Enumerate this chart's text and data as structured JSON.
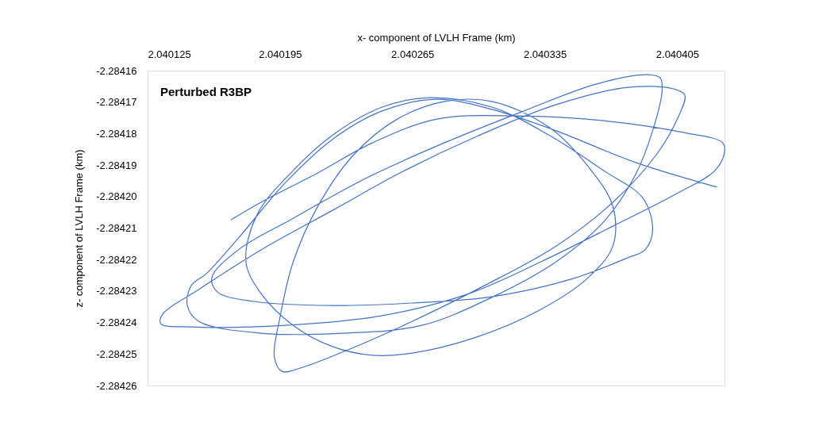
{
  "chart_data": {
    "type": "line",
    "xlabel": "x- component of LVLH Frame (km)",
    "ylabel": "z- component of LVLH Frame (km)",
    "xlim": [
      2.040125,
      2.04043
    ],
    "xticks": [
      2.040125,
      2.040195,
      2.040265,
      2.040335,
      2.040405
    ],
    "ylim": [
      -2.28426,
      -2.28416
    ],
    "yticks": [
      -2.28416,
      -2.28417,
      -2.28418,
      -2.28419,
      {
        "value": -2.2842,
        "label": "-2.28420"
      },
      -2.28421,
      -2.28422,
      -2.28423,
      -2.28424,
      -2.28425,
      -2.28426
    ],
    "grid": false,
    "legend": false,
    "marker": "none",
    "line_style": "solid",
    "series": [
      {
        "name": "Perturbed R3BP",
        "color": "#4472c4",
        "x": [
          2.040169,
          2.040185,
          2.040215,
          2.040244,
          2.040278,
          2.04032,
          2.040366,
          2.040408,
          2.040429,
          2.04043,
          2.040425,
          2.040404,
          2.040371,
          2.040333,
          2.040295,
          2.040249,
          2.040198,
          2.040148,
          2.040132,
          2.040133,
          2.040152,
          2.040185,
          2.040223,
          2.040261,
          2.040299,
          2.040341,
          2.040379,
          2.040403,
          2.040409,
          2.040406,
          2.040394,
          2.040371,
          2.040341,
          2.040303,
          2.040265,
          2.040232,
          2.040207,
          2.040196,
          2.040192,
          2.040195,
          2.040202,
          2.040215,
          2.040234,
          2.040257,
          2.040282,
          2.040307,
          2.040337,
          2.040358,
          2.040371,
          2.040371,
          2.040358,
          2.040333,
          2.040299,
          2.040265,
          2.040244,
          2.040223,
          2.040202,
          2.040185,
          2.040177,
          2.040183,
          2.040202,
          2.040223,
          2.040249,
          2.040274,
          2.040307,
          2.040337,
          2.040366,
          2.040387,
          2.040392,
          2.040388,
          2.040379,
          2.040349,
          2.040307,
          2.040265,
          2.040223,
          2.040181,
          2.040162,
          2.040159,
          2.040173,
          2.040202,
          2.04024,
          2.040282,
          2.040324,
          2.040362,
          2.040389,
          2.040396,
          2.040397,
          2.040392,
          2.040383,
          2.040366,
          2.040341,
          2.040307,
          2.04027,
          2.040228,
          2.040185,
          2.040152,
          2.040146,
          2.040148,
          2.040156,
          2.040173,
          2.040198,
          2.040223,
          2.040249,
          2.040278,
          2.040307,
          2.040341,
          2.040383,
          2.040426
        ],
        "values": [
          -2.2842074,
          -2.2842018,
          -2.2841925,
          -2.2841829,
          -2.2841754,
          -2.2841744,
          -2.2841759,
          -2.2841796,
          -2.2841829,
          -2.2841859,
          -2.2841917,
          -2.2841993,
          -2.2842094,
          -2.2842207,
          -2.2842308,
          -2.2842378,
          -2.2842409,
          -2.2842414,
          -2.2842404,
          -2.2842373,
          -2.2842295,
          -2.2842169,
          -2.2842043,
          -2.2841917,
          -2.2841809,
          -2.2841708,
          -2.2841653,
          -2.2841658,
          -2.2841678,
          -2.2841741,
          -2.2841867,
          -2.2842018,
          -2.2842157,
          -2.2842283,
          -2.2842396,
          -2.2842484,
          -2.2842542,
          -2.2842555,
          -2.2842509,
          -2.2842383,
          -2.2842207,
          -2.2842031,
          -2.2841867,
          -2.2841754,
          -2.2841698,
          -2.2841698,
          -2.2841779,
          -2.2841905,
          -2.2842031,
          -2.2842157,
          -2.2842257,
          -2.2842358,
          -2.2842446,
          -2.2842497,
          -2.2842504,
          -2.2842477,
          -2.2842409,
          -2.2842308,
          -2.2842207,
          -2.2842056,
          -2.2841917,
          -2.2841804,
          -2.2841716,
          -2.2841686,
          -2.2841716,
          -2.2841804,
          -2.2841917,
          -2.2842006,
          -2.2842106,
          -2.2842169,
          -2.2842194,
          -2.2842262,
          -2.2842318,
          -2.2842338,
          -2.2842346,
          -2.2842333,
          -2.2842303,
          -2.2842257,
          -2.2842169,
          -2.2842069,
          -2.2841943,
          -2.2841829,
          -2.2841728,
          -2.2841643,
          -2.2841613,
          -2.2841623,
          -2.2841665,
          -2.2841791,
          -2.284193,
          -2.2842081,
          -2.2842207,
          -2.284232,
          -2.2842409,
          -2.2842434,
          -2.2842434,
          -2.2842396,
          -2.2842346,
          -2.2842283,
          -2.2842245,
          -2.2842132,
          -2.2841955,
          -2.2841817,
          -2.2841728,
          -2.2841691,
          -2.2841723,
          -2.2841791,
          -2.2841892,
          -2.284197
        ]
      }
    ]
  }
}
